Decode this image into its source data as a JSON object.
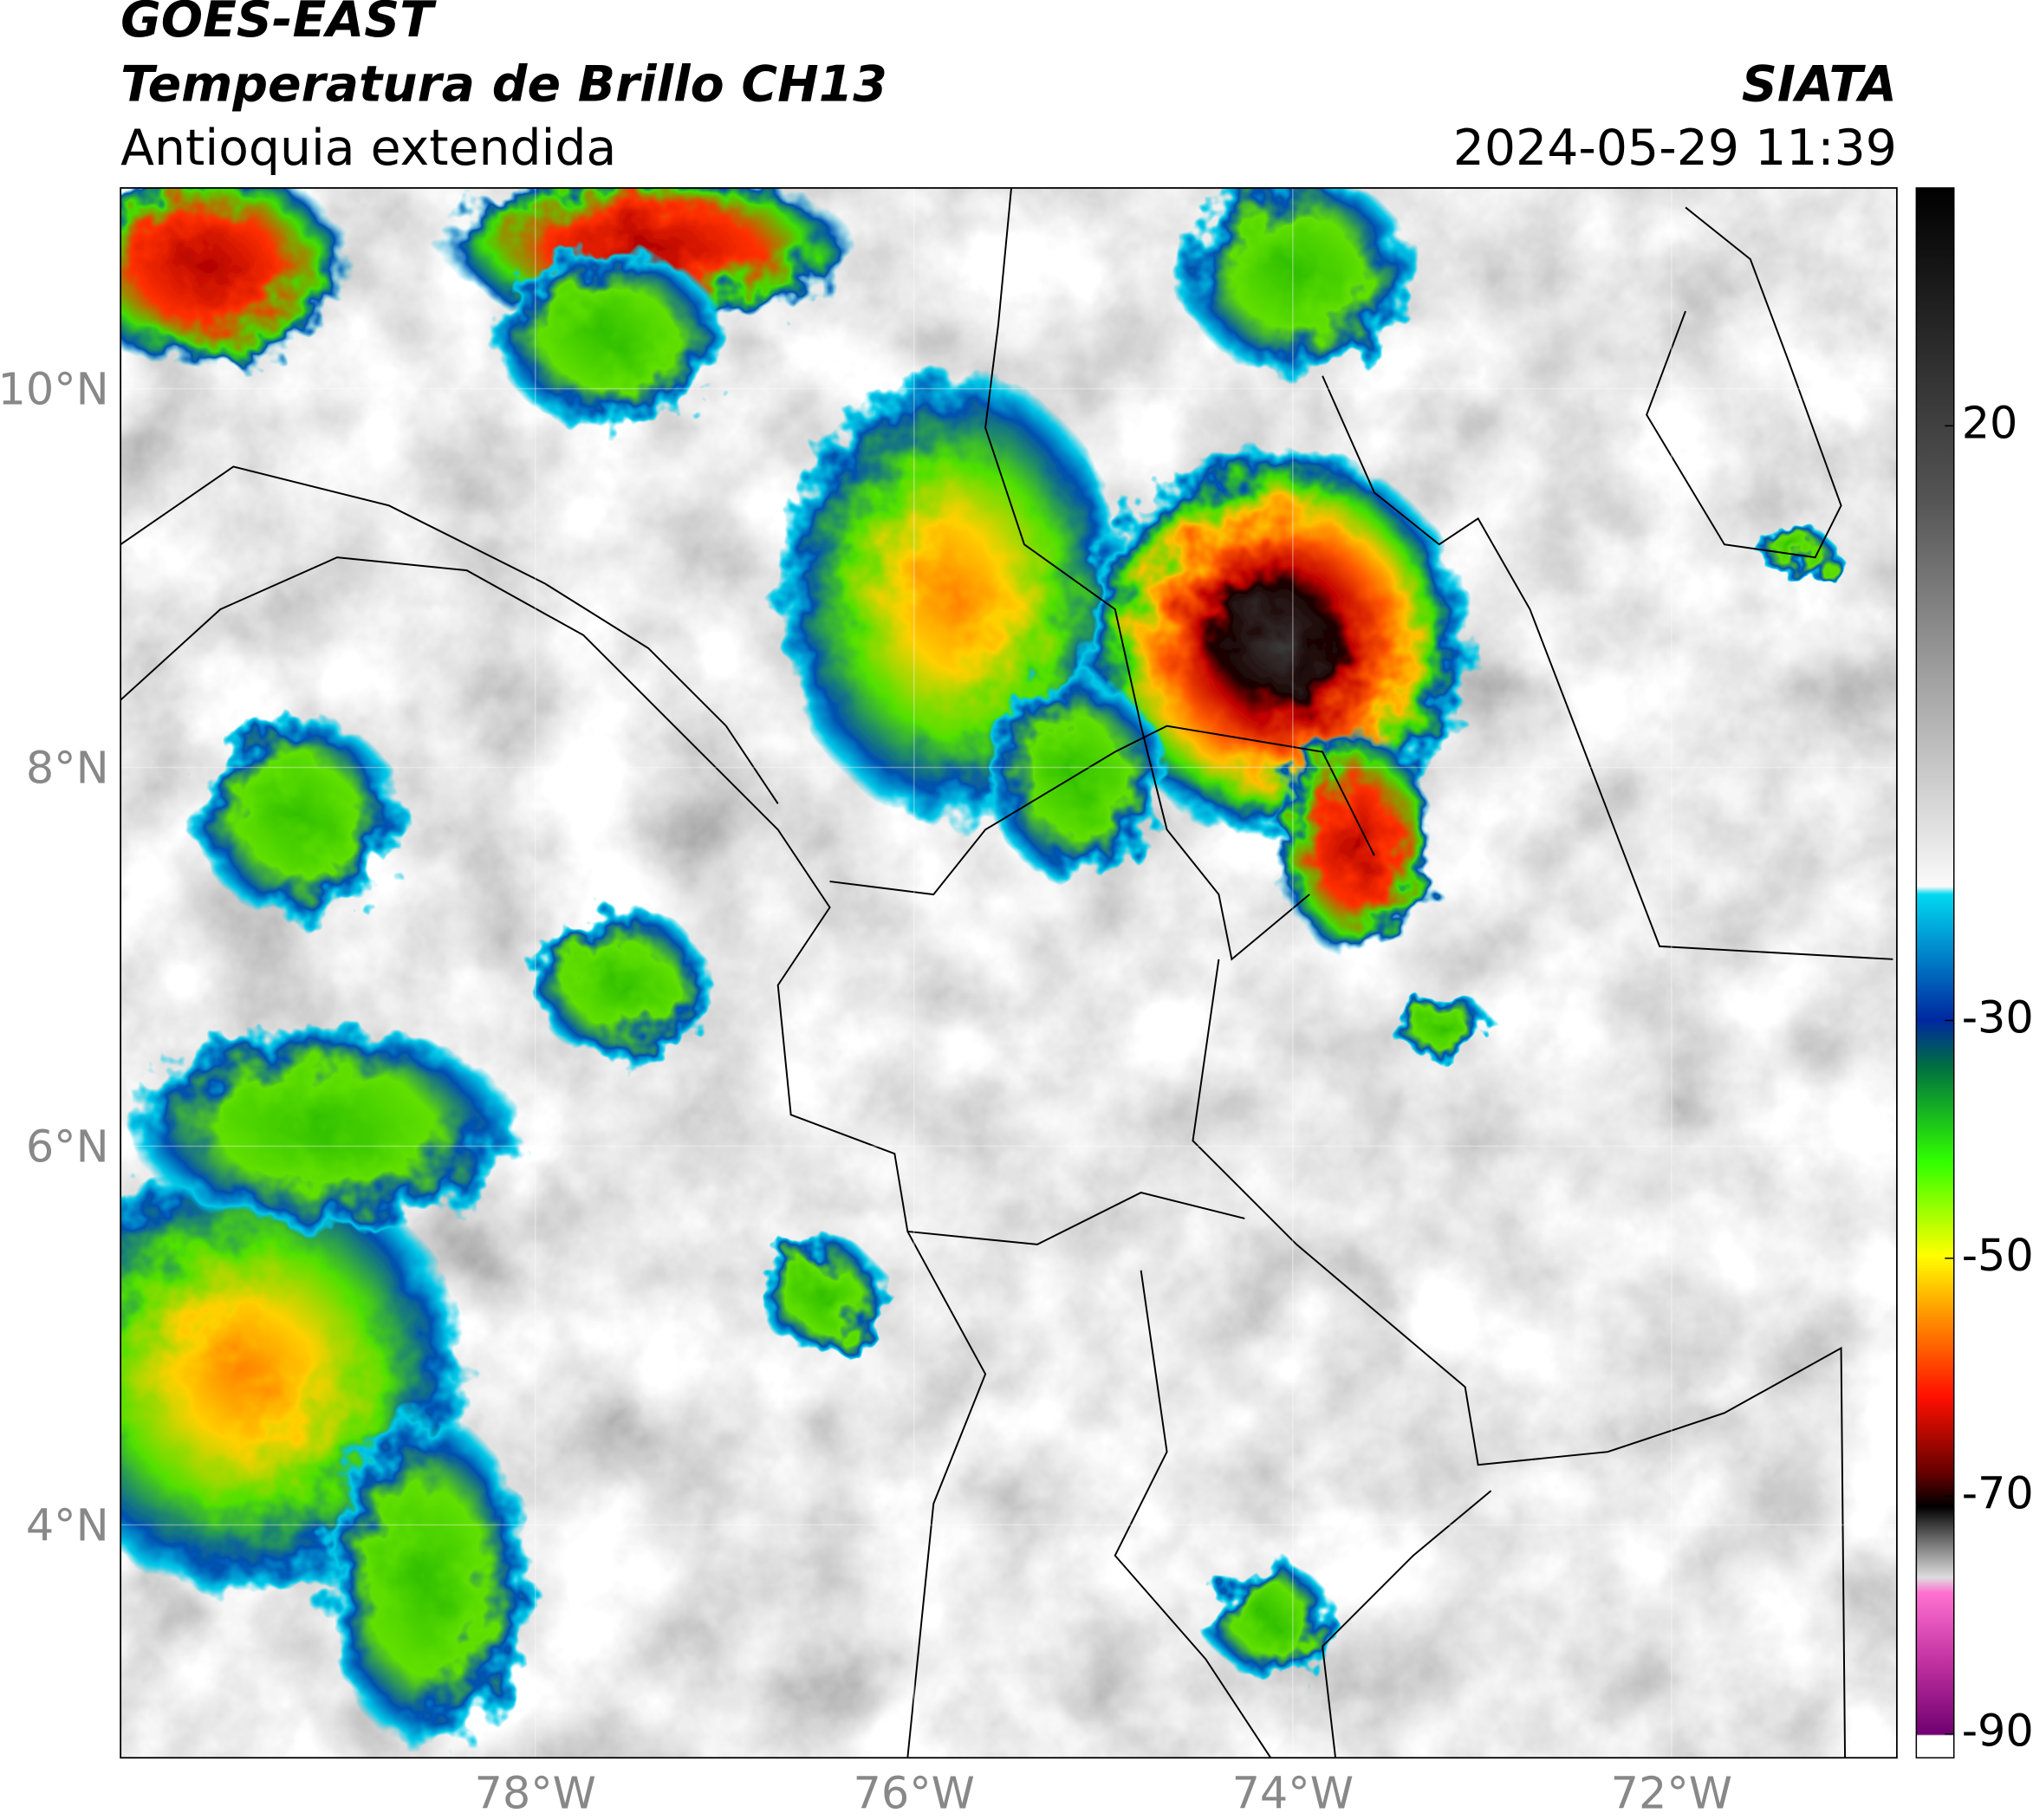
{
  "header": {
    "title": "GOES-EAST",
    "subtitle": "Temperatura de Brillo CH13",
    "region": "Antioquia extendida",
    "source": "SIATA",
    "datetime": "2024-05-29 11:39"
  },
  "map": {
    "xlim": [
      -80.19,
      -70.81
    ],
    "ylim": [
      2.77,
      11.06
    ],
    "xticks": [
      {
        "value": -78,
        "label": "78°W"
      },
      {
        "value": -76,
        "label": "76°W"
      },
      {
        "value": -74,
        "label": "74°W"
      },
      {
        "value": -72,
        "label": "72°W"
      }
    ],
    "yticks": [
      {
        "value": 10,
        "label": "10°N"
      },
      {
        "value": 8,
        "label": "8°N"
      },
      {
        "value": 6,
        "label": "6°N"
      },
      {
        "value": 4,
        "label": "4°N"
      }
    ],
    "grid": true
  },
  "colorbar": {
    "lim": [
      -92,
      40
    ],
    "ticks": [
      20,
      -30,
      -50,
      -70,
      -90
    ]
  }
}
